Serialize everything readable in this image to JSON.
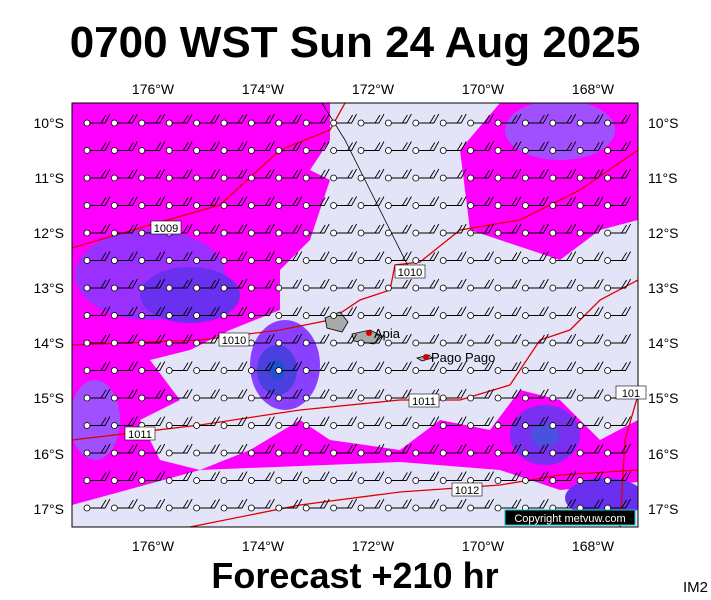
{
  "header": {
    "title": "0700 WST Sun 24 Aug 2025"
  },
  "map": {
    "top_labels": [
      "176°W",
      "174°W",
      "172°W",
      "170°W",
      "168°W"
    ],
    "bottom_labels": [
      "176°W",
      "174°W",
      "172°W",
      "170°W",
      "168°W"
    ],
    "left_labels": [
      "10°S",
      "11°S",
      "12°S",
      "13°S",
      "14°S",
      "15°S",
      "16°S",
      "17°S"
    ],
    "right_labels": [
      "10°S",
      "11°S",
      "12°S",
      "13°S",
      "14°S",
      "15°S",
      "16°S",
      "17°S"
    ],
    "isobar_labels": [
      "1009",
      "1010",
      "1010",
      "1011",
      "1011",
      "1012",
      "101"
    ],
    "places": [
      "Apia",
      "Pago Pago"
    ],
    "copyright": "Copyright metvuw.com"
  },
  "footer": {
    "forecast": "Forecast +210 hr",
    "code": "IM2"
  }
}
